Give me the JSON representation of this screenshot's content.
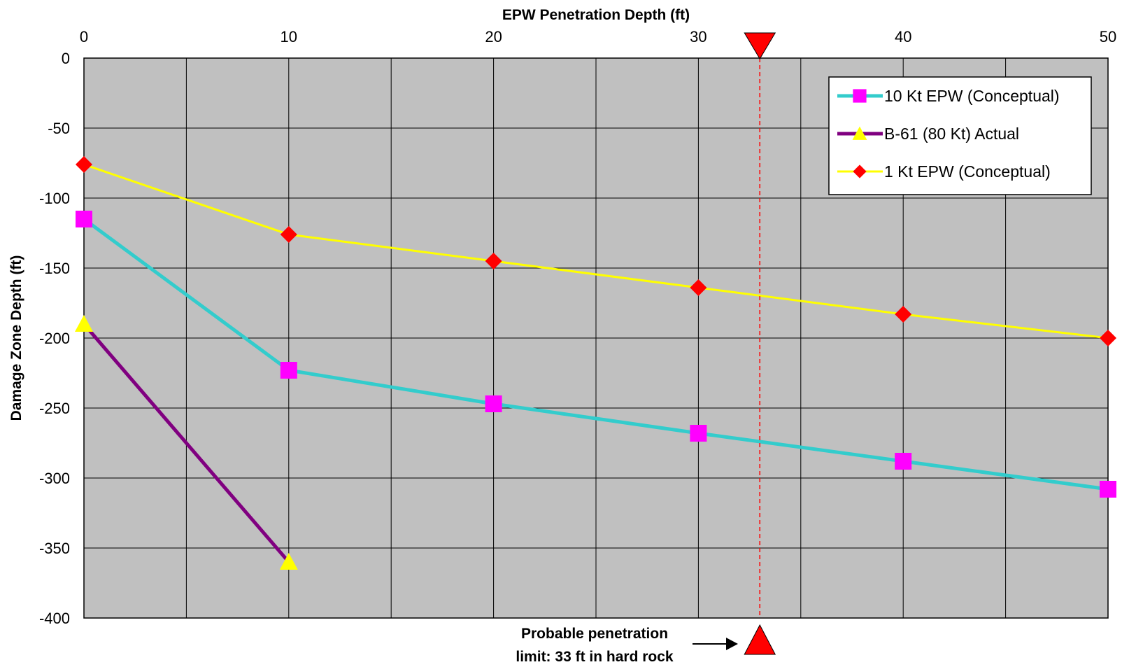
{
  "chart_data": {
    "type": "line",
    "title": "",
    "xlabel": "EPW Penetration Depth (ft)",
    "ylabel": "Damage Zone Depth (ft)",
    "xlim": [
      0,
      50
    ],
    "ylim": [
      -400,
      0
    ],
    "xticks": [
      0,
      10,
      20,
      30,
      40,
      50
    ],
    "yticks": [
      0,
      -50,
      -100,
      -150,
      -200,
      -250,
      -300,
      -350,
      -400
    ],
    "x_minor_gridlines": [
      5,
      15,
      25,
      35,
      45
    ],
    "x_axis_position": "top",
    "grid": true,
    "plot_background": "#c0c0c0",
    "legend_position": "top-right",
    "series": [
      {
        "name": "10 Kt EPW (Conceptual)",
        "line_color": "#33cccc",
        "marker": "square",
        "marker_color": "#ff00ff",
        "x": [
          0,
          10,
          20,
          30,
          40,
          50
        ],
        "y": [
          -115,
          -223,
          -247,
          -268,
          -288,
          -308
        ]
      },
      {
        "name": "B-61 (80 Kt) Actual",
        "line_color": "#800080",
        "marker": "triangle",
        "marker_color": "#ffff00",
        "x": [
          0,
          10
        ],
        "y": [
          -190,
          -360
        ]
      },
      {
        "name": "1 Kt EPW (Conceptual)",
        "line_color": "#ffff00",
        "marker": "diamond",
        "marker_color": "#ff0000",
        "x": [
          0,
          10,
          20,
          30,
          40,
          50
        ],
        "y": [
          -76,
          -126,
          -145,
          -164,
          -183,
          -200
        ]
      }
    ],
    "reference_line": {
      "x": 33,
      "color": "#ff0000",
      "style": "dashed",
      "marker_color": "#ff0000"
    },
    "annotation": {
      "line1": "Probable penetration",
      "line2": "limit: 33 ft in hard rock"
    }
  }
}
